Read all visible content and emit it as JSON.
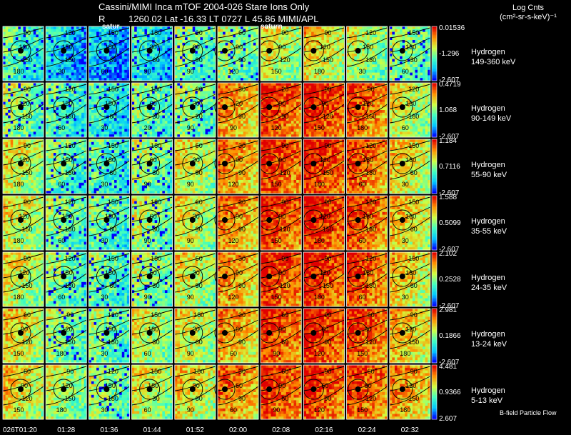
{
  "title": "Cassini/MIMI Inca mTOF  2004-026   Stare   Ions Only",
  "subtitle_left": "R",
  "subtitle_right": "1260.02 Lat -16.33 LT 0727 L        45.86  MIMI/APL",
  "saturn_label_1": "satur",
  "saturn_label_2": "saturn",
  "units": {
    "line1": "Log Cnts",
    "line2": "(cm²-sr-s-keV)⁻¹"
  },
  "footer_label": "B-field Particle Flow",
  "time_labels": [
    "026T01:20",
    "01:28",
    "01:36",
    "01:44",
    "01:52",
    "02:00",
    "02:08",
    "02:16",
    "02:24",
    "02:32"
  ],
  "colors": {
    "background": "#000000",
    "frame": "#ffffff",
    "contour": "#000000"
  },
  "colorscale": [
    "#0000ff",
    "#00c8ff",
    "#40ffc0",
    "#d0ff40",
    "#ff9000",
    "#e00000"
  ],
  "channels": [
    {
      "species": "Hydrogen",
      "energy": "149-360 keV",
      "cb_max": "0.01536",
      "cb_mid": "-1.296",
      "cb_min": "-2.607"
    },
    {
      "species": "Hydrogen",
      "energy": "90-149 keV",
      "cb_max": "0.4719",
      "cb_mid": "1.068",
      "cb_min": "-2.607"
    },
    {
      "species": "Hydrogen",
      "energy": "55-90 keV",
      "cb_max": "1.184",
      "cb_mid": "0.7116",
      "cb_min": "-2.607"
    },
    {
      "species": "Hydrogen",
      "energy": "35-55 keV",
      "cb_max": "1.588",
      "cb_mid": "0.5099",
      "cb_min": "-2.607"
    },
    {
      "species": "Hydrogen",
      "energy": "24-35 keV",
      "cb_max": "2.102",
      "cb_mid": "0.2528",
      "cb_min": "-2.607"
    },
    {
      "species": "Hydrogen",
      "energy": "13-24 keV",
      "cb_max": "2.981",
      "cb_mid": "0.1866",
      "cb_min": "-2.607"
    },
    {
      "species": "Hydrogen",
      "energy": "5-13 keV",
      "cb_max": "4.481",
      "cb_mid": "0.9366",
      "cb_min": "2.607"
    }
  ],
  "contour_labels": [
    [
      "90",
      "120",
      "150",
      "180",
      "30",
      "60",
      "90"
    ],
    [
      "90",
      "120",
      "150",
      "180",
      "60",
      "30",
      "20",
      "90"
    ],
    [
      "90",
      "120",
      "150",
      "180",
      "60",
      "30",
      "90"
    ],
    [
      "90",
      "120",
      "150",
      "180",
      "60",
      "30",
      "90"
    ],
    [
      "90",
      "120",
      "150",
      "180",
      "60",
      "30",
      "90"
    ],
    [
      "60",
      "90",
      "120",
      "150",
      "180",
      "30",
      "60",
      "90"
    ],
    [
      "60",
      "90",
      "120",
      "150",
      "180",
      "30",
      "60",
      "90"
    ]
  ],
  "intensity": [
    [
      0.35,
      0.2,
      0.15,
      0.25,
      0.4,
      0.45,
      0.55,
      0.6,
      0.5,
      0.45
    ],
    [
      0.45,
      0.35,
      0.3,
      0.4,
      0.45,
      0.7,
      0.85,
      0.88,
      0.8,
      0.55
    ],
    [
      0.55,
      0.4,
      0.35,
      0.45,
      0.55,
      0.72,
      0.85,
      0.88,
      0.8,
      0.6
    ],
    [
      0.55,
      0.42,
      0.38,
      0.48,
      0.55,
      0.72,
      0.86,
      0.9,
      0.82,
      0.62
    ],
    [
      0.55,
      0.42,
      0.38,
      0.48,
      0.55,
      0.7,
      0.86,
      0.88,
      0.82,
      0.62
    ],
    [
      0.6,
      0.45,
      0.42,
      0.52,
      0.55,
      0.68,
      0.85,
      0.88,
      0.82,
      0.65
    ],
    [
      0.6,
      0.5,
      0.45,
      0.55,
      0.6,
      0.75,
      0.85,
      0.85,
      0.82,
      0.7
    ]
  ]
}
